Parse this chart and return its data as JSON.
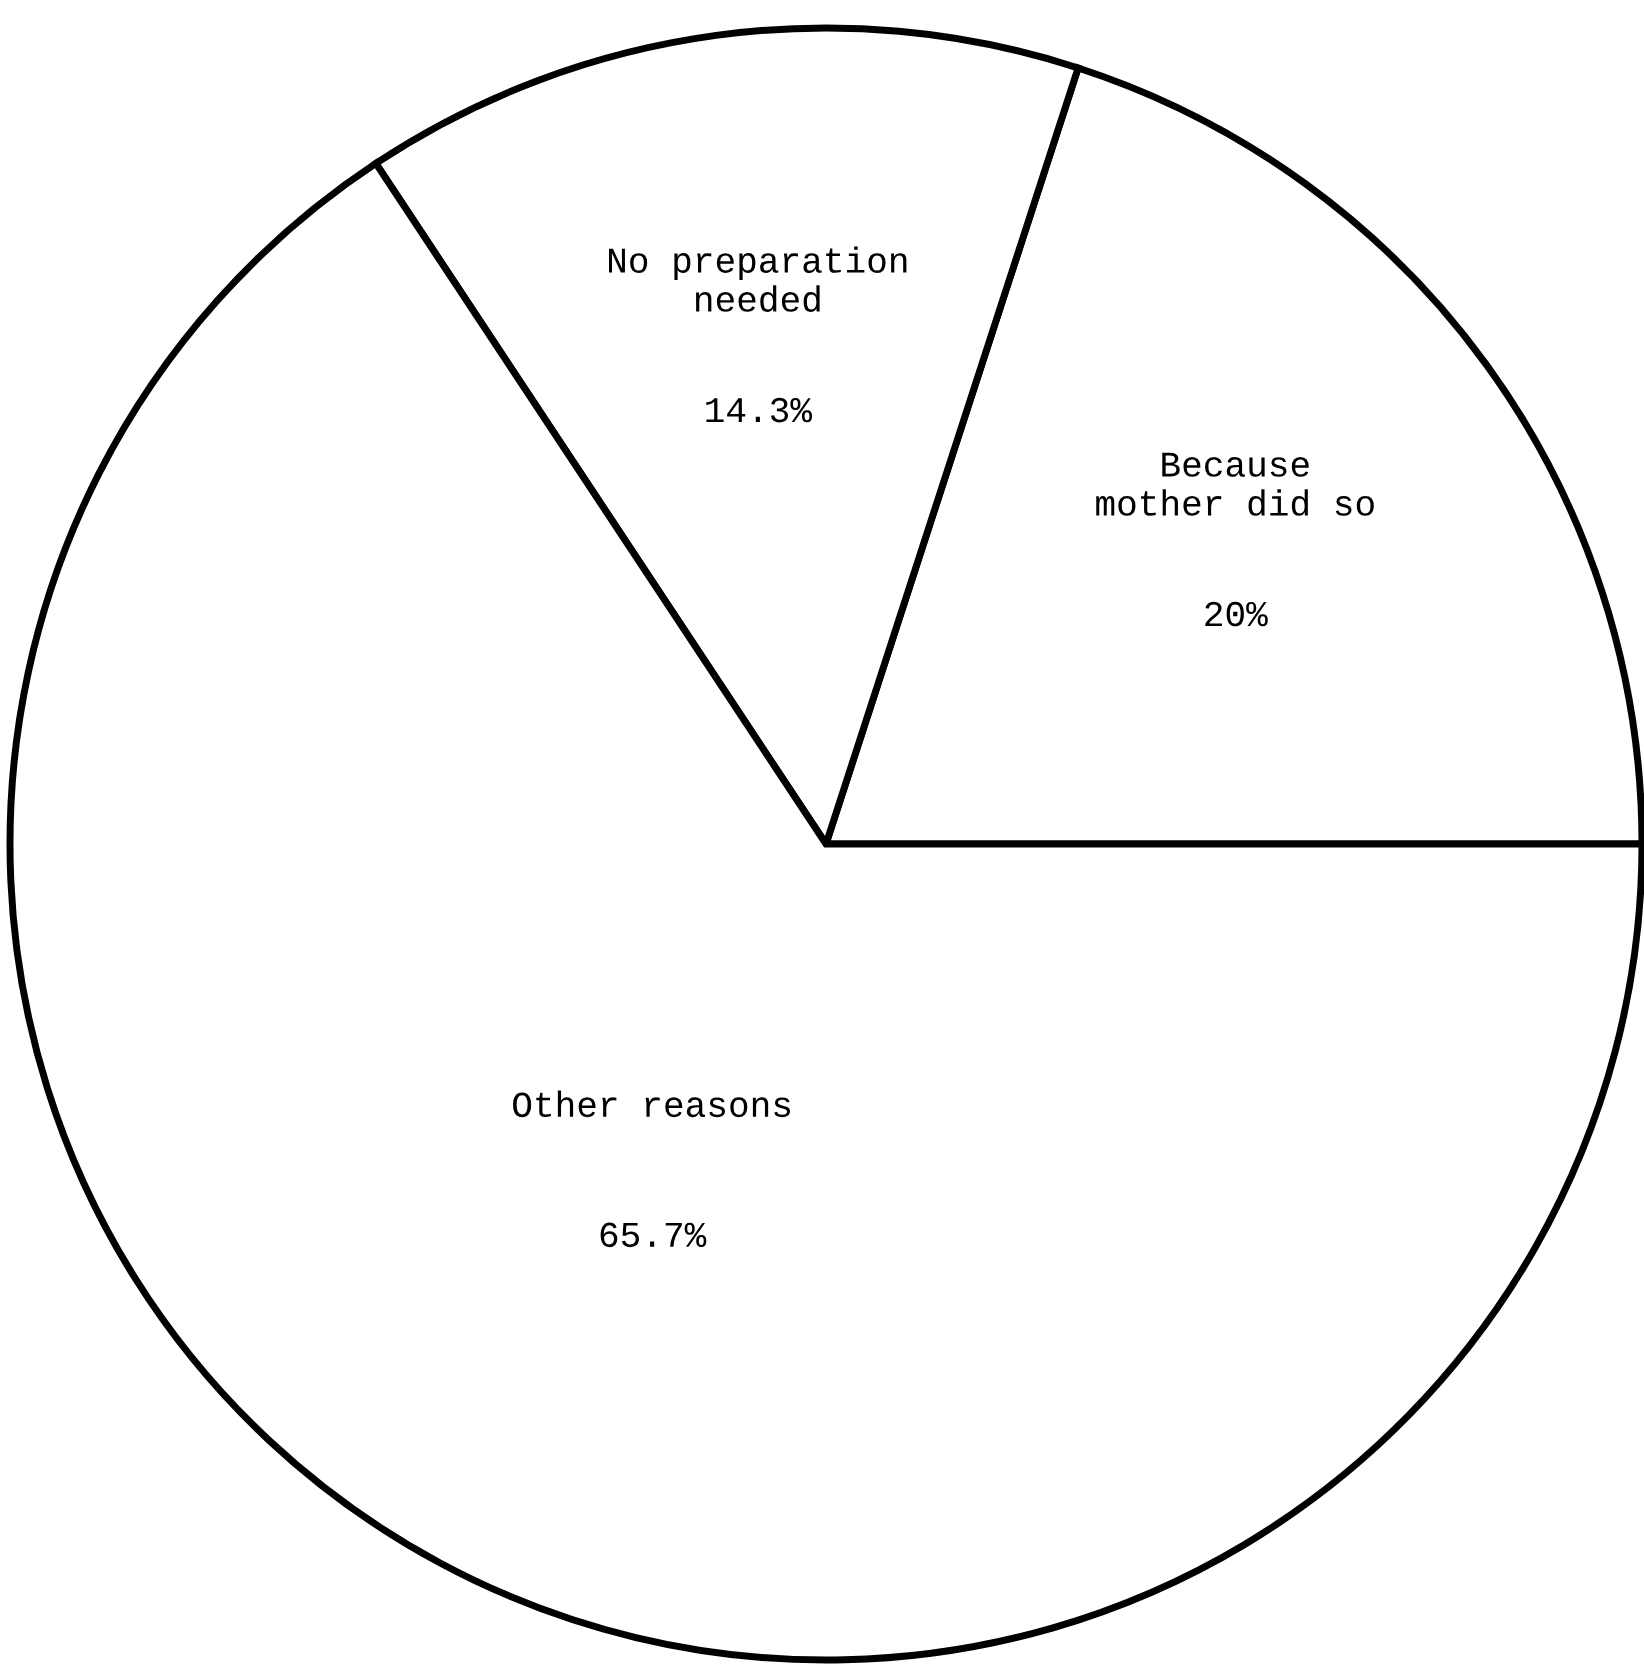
{
  "chart_data": {
    "type": "pie",
    "categories": [
      "Because\nmother did so",
      "No preparation\nneeded",
      "Other reasons"
    ],
    "values": [
      20,
      14.3,
      65.7
    ],
    "colors": [
      "#ffffff",
      "#ffffff",
      "#ffffff"
    ],
    "value_labels": [
      "20%",
      "14.3%",
      "65.7%"
    ]
  }
}
